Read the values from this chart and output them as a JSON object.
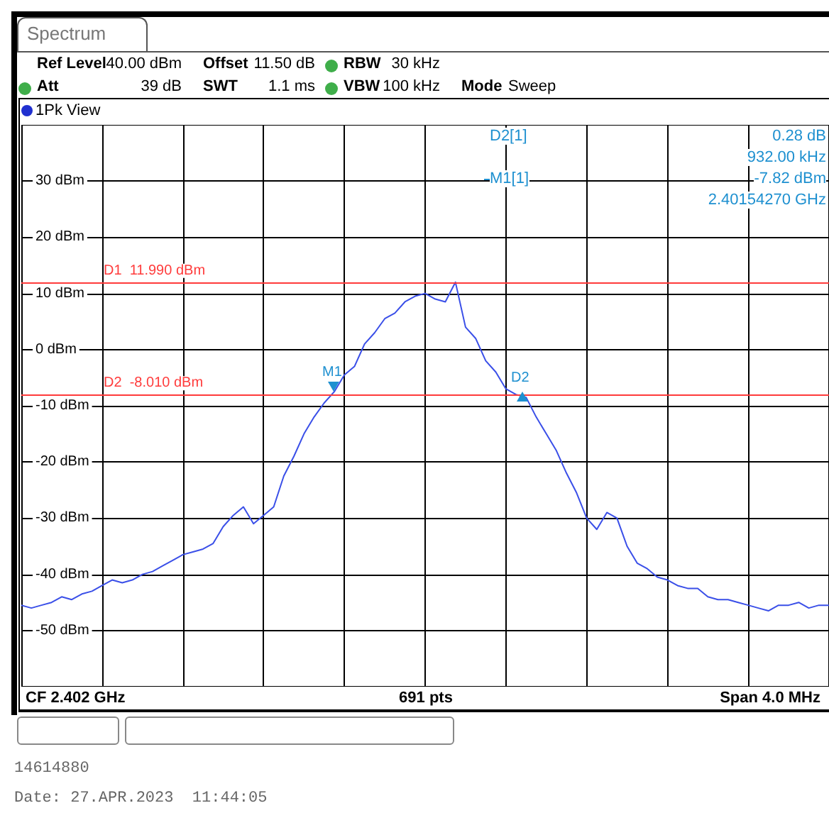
{
  "chart_data": {
    "type": "line",
    "title": "Spectrum",
    "categories": [
      null,
      null,
      null,
      null,
      null,
      null,
      null,
      null,
      null,
      null,
      null,
      null,
      null,
      null,
      null,
      null,
      null,
      null,
      null,
      null,
      null,
      null,
      null,
      null,
      null,
      null,
      null,
      null,
      null,
      null,
      null,
      null,
      null,
      null,
      null,
      null,
      null,
      null,
      null,
      null,
      null,
      null,
      null,
      null,
      null,
      null,
      null,
      null,
      null,
      null,
      null,
      null,
      null,
      null,
      null,
      null,
      null,
      null,
      null,
      null,
      null,
      null,
      null,
      null,
      null,
      null,
      null,
      null,
      null,
      null,
      null,
      null,
      null,
      null,
      null,
      null,
      null,
      null,
      null,
      null,
      null
    ],
    "series": [
      {
        "color": "#3a4fe8",
        "values": [
          -45.5,
          -46,
          -45.5,
          -45,
          -44,
          -44.5,
          -43.5,
          -43,
          -42,
          -41,
          -41.5,
          -41,
          -40,
          -39.5,
          -38.5,
          -37.5,
          -36.5,
          -36,
          -35.5,
          -34.5,
          -31.5,
          -29.5,
          -28,
          -31,
          -29.5,
          -28,
          -22.5,
          -19,
          -15,
          -12,
          -9.5,
          -7.5,
          -4.5,
          -3,
          1,
          3,
          5.5,
          6.5,
          8.5,
          9.5,
          10,
          9,
          8.5,
          12,
          4,
          2,
          -2,
          -4,
          -7,
          -8,
          -8.5,
          -12,
          -15,
          -18,
          -22,
          -25.5,
          -30,
          -32,
          -29,
          -30,
          -35,
          -38,
          -39,
          -40.5,
          -41,
          -42,
          -42.5,
          -42.5,
          -44,
          -44.5,
          -44.5,
          -45,
          -45.5,
          -46,
          -46.5,
          -45.5,
          -45.5,
          -45,
          -46,
          -45.5,
          -45.5
        ]
      }
    ],
    "ylim": [
      -60,
      40
    ],
    "yticks": [
      {
        "value": 30,
        "label": "30 dBm"
      },
      {
        "value": 20,
        "label": "20 dBm"
      },
      {
        "value": 10,
        "label": "10 dBm"
      },
      {
        "value": 0,
        "label": "0 dBm"
      },
      {
        "value": -10,
        "label": "-10 dBm"
      },
      {
        "value": -20,
        "label": "-20 dBm"
      },
      {
        "value": -30,
        "label": "-30 dBm"
      },
      {
        "value": -40,
        "label": "-40 dBm"
      },
      {
        "value": -50,
        "label": "-50 dBm"
      }
    ],
    "tick_labels": "y",
    "grid": true,
    "ref_lines": [
      {
        "axis": "y",
        "value": 11.99,
        "label": "D1  11.990 dBm",
        "color": "#ff3b3b"
      },
      {
        "axis": "y",
        "value": -8.01,
        "label": "D2  -8.010 dBm",
        "color": "#ff3b3b"
      }
    ],
    "annotations": [
      "Ref Level",
      "40.00 dBm",
      "Offset",
      "11.50 dB",
      "RBW",
      "30 kHz",
      "Att",
      "39 dB",
      "SWT",
      "1.1 ms",
      "VBW",
      "100 kHz",
      "Mode",
      "Sweep",
      "1Pk View",
      "D2[1]",
      "0.28 dB",
      "932.00 kHz",
      "M1[1]",
      "-7.82 dBm",
      "2.40154270 GHz",
      "CF 2.402 GHz",
      "691 pts",
      "Span 4.0 MHz",
      "14614880",
      "Date: 27.APR.2023  11:44:05",
      "M1",
      "D2"
    ]
  }
}
